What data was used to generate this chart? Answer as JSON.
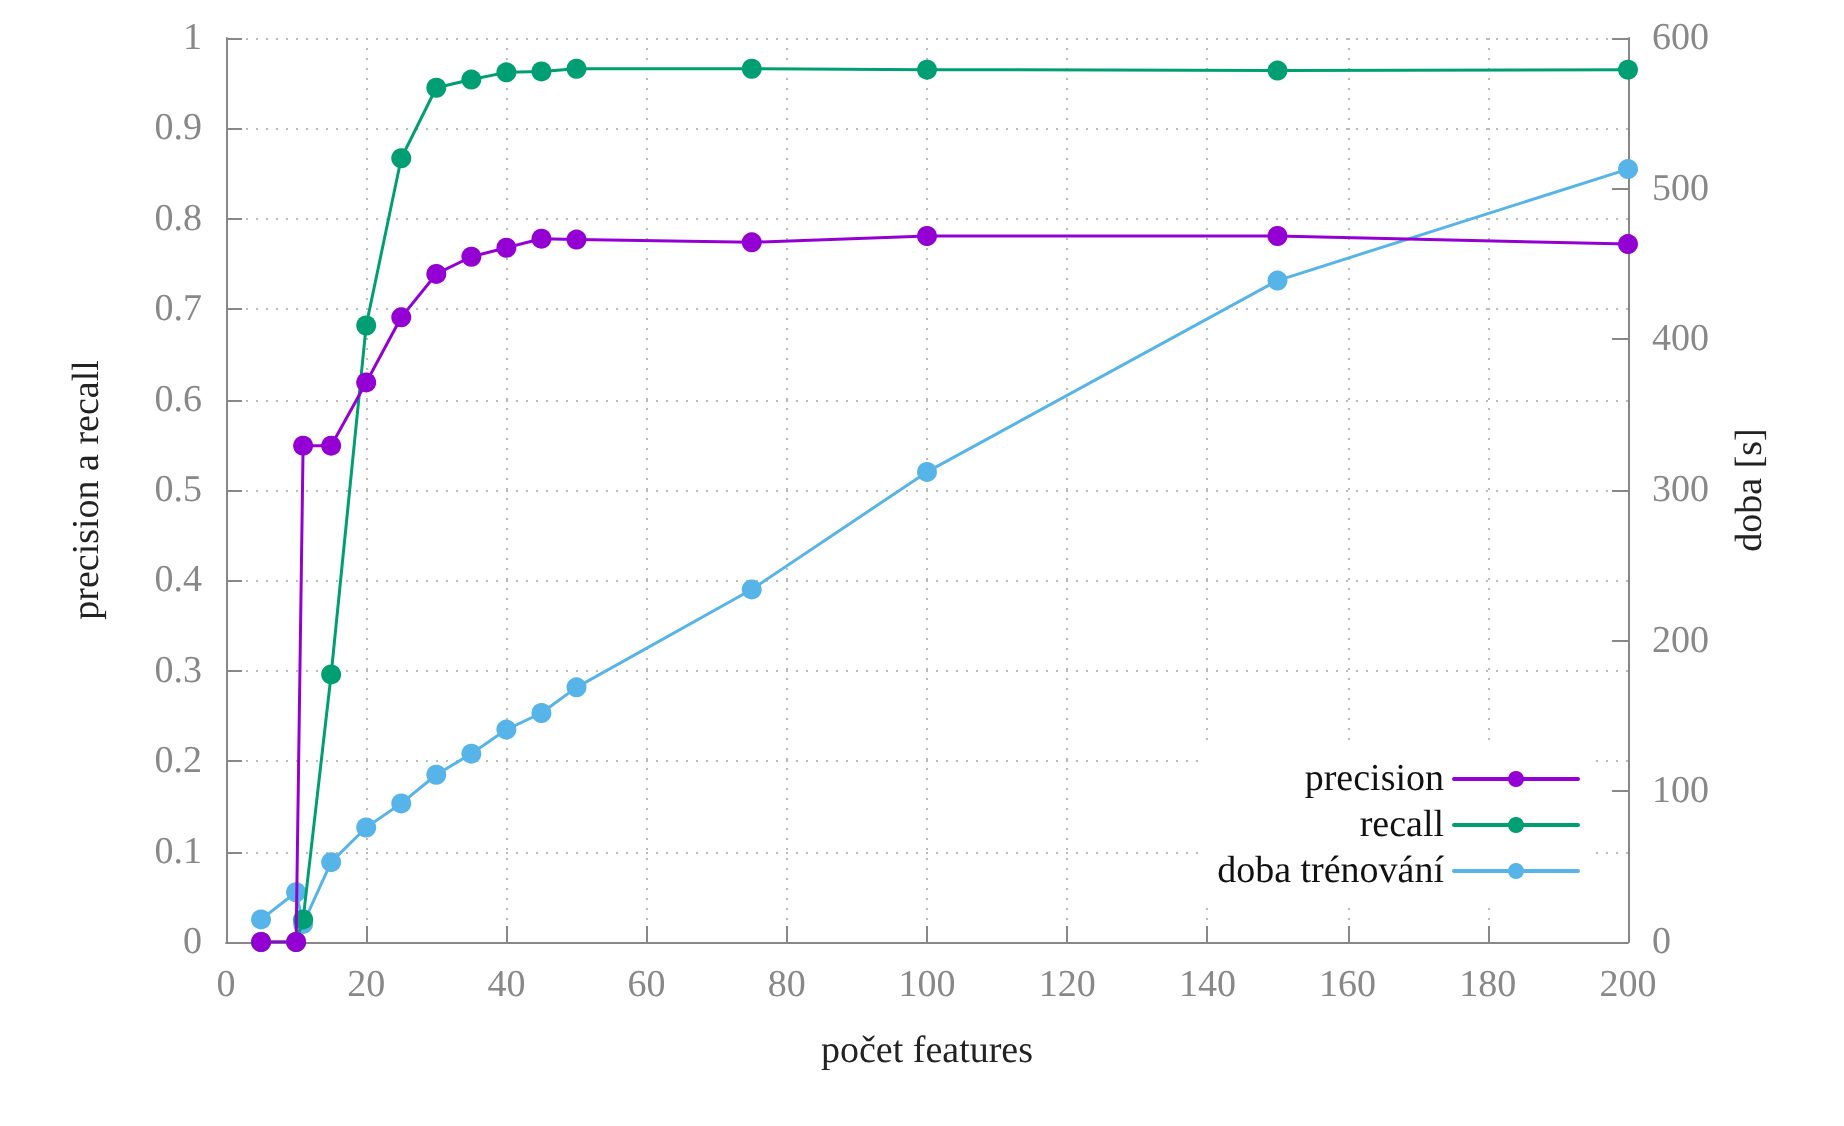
{
  "chart_data": {
    "type": "line",
    "xlabel": "počet features",
    "ylabel": "precision a recall",
    "y2label": "doba [s]",
    "x": [
      5,
      10,
      11,
      15,
      20,
      25,
      30,
      35,
      40,
      45,
      50,
      75,
      100,
      150,
      200
    ],
    "series": [
      {
        "name": "precision",
        "color": "#9400d3",
        "values": [
          0,
          0,
          0.549,
          0.549,
          0.619,
          0.691,
          0.739,
          0.758,
          0.768,
          0.778,
          0.777,
          0.774,
          0.781,
          0.781,
          0.772
        ]
      },
      {
        "name": "recall",
        "color": "#009e73",
        "values": [
          0,
          0,
          0.025,
          0.296,
          0.682,
          0.867,
          0.945,
          0.954,
          0.962,
          0.963,
          0.966,
          0.966,
          0.965,
          0.964,
          0.965
        ]
      },
      {
        "name": "doba trénování",
        "color": "#56b4e9",
        "axis": "y2",
        "values": [
          15,
          33,
          12,
          53,
          76,
          92,
          111,
          125,
          141,
          152,
          169,
          234,
          312,
          439,
          513
        ]
      }
    ],
    "xlim": [
      0,
      200
    ],
    "xticks": [
      0,
      20,
      40,
      60,
      80,
      100,
      120,
      140,
      160,
      180,
      200
    ],
    "ylim": [
      0,
      1
    ],
    "yticks": [
      0,
      0.1,
      0.2,
      0.3,
      0.4,
      0.5,
      0.6,
      0.7,
      0.8,
      0.9,
      1
    ],
    "y2lim": [
      0,
      600
    ],
    "y2ticks": [
      0,
      100,
      200,
      300,
      400,
      500,
      600
    ],
    "grid": true,
    "legend": "bottom right",
    "marker": "circle",
    "line_style": "solid"
  }
}
